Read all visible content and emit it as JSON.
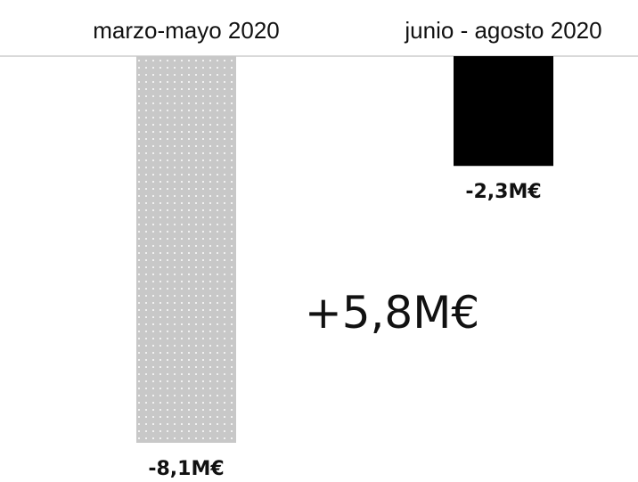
{
  "chart_data": {
    "type": "bar",
    "categories": [
      "marzo-mayo 2020",
      "junio - agosto 2020"
    ],
    "values": [
      -8.1,
      -2.3
    ],
    "value_labels": [
      "-8,1M€",
      "-2,3M€"
    ],
    "unit": "M€",
    "ylim": [
      -8.1,
      0
    ],
    "grid": false,
    "annotation": "+5,8M€",
    "colors": {
      "bar_1": "#c8c8c8",
      "bar_1_pattern_dots": "#ffffff",
      "bar_2": "#000000",
      "baseline": "#d9d9d9",
      "text": "#111111"
    }
  }
}
